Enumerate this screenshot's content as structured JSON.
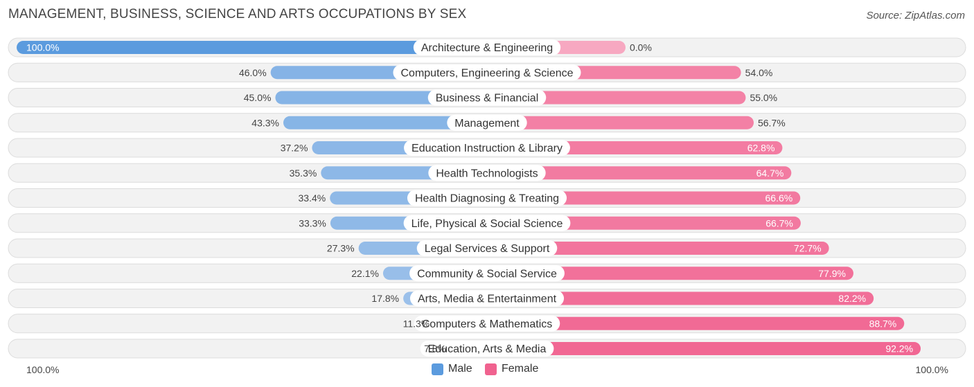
{
  "title": "MANAGEMENT, BUSINESS, SCIENCE AND ARTS OCCUPATIONS BY SEX",
  "source": "Source: ZipAtlas.com",
  "colors": {
    "male_dark": "#5b9bde",
    "male_light": "#a9c8ec",
    "female_dark": "#f0628f",
    "female_light": "#f7a8c1",
    "row_bg": "#f2f2f2",
    "row_border": "#dcdcdc"
  },
  "legend": {
    "male": "Male",
    "female": "Female"
  },
  "axis": {
    "left_label": "100.0%",
    "right_label": "100.0%"
  },
  "chart_data": {
    "type": "bar",
    "orientation": "horizontal-diverging",
    "title": "MANAGEMENT, BUSINESS, SCIENCE AND ARTS OCCUPATIONS BY SEX",
    "categories": [
      "Architecture & Engineering",
      "Computers, Engineering & Science",
      "Business & Financial",
      "Management",
      "Education Instruction & Library",
      "Health Technologists",
      "Health Diagnosing & Treating",
      "Life, Physical & Social Science",
      "Legal Services & Support",
      "Community & Social Service",
      "Arts, Media & Entertainment",
      "Computers & Mathematics",
      "Education, Arts & Media"
    ],
    "series": [
      {
        "name": "Male",
        "values": [
          100.0,
          46.0,
          45.0,
          43.3,
          37.2,
          35.3,
          33.4,
          33.3,
          27.3,
          22.1,
          17.8,
          11.3,
          7.8
        ],
        "labels": [
          "100.0%",
          "46.0%",
          "45.0%",
          "43.3%",
          "37.2%",
          "35.3%",
          "33.4%",
          "33.3%",
          "27.3%",
          "22.1%",
          "17.8%",
          "11.3%",
          "7.8%"
        ]
      },
      {
        "name": "Female",
        "values": [
          0.0,
          54.0,
          55.0,
          56.7,
          62.8,
          64.7,
          66.6,
          66.7,
          72.7,
          77.9,
          82.2,
          88.7,
          92.2
        ],
        "labels": [
          "0.0%",
          "54.0%",
          "55.0%",
          "56.7%",
          "62.8%",
          "64.7%",
          "66.6%",
          "66.7%",
          "72.7%",
          "77.9%",
          "82.2%",
          "88.7%",
          "92.2%"
        ]
      }
    ],
    "xlim": [
      -100,
      100
    ],
    "legend_position": "bottom-center"
  }
}
